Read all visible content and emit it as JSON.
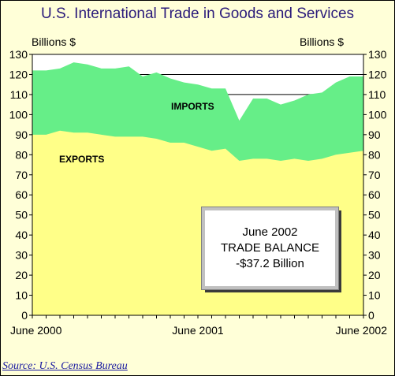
{
  "chart_data": {
    "type": "area",
    "title": "U.S. International Trade in Goods and Services",
    "ylabel_left": "Billions $",
    "ylabel_right": "Billions $",
    "ylim": [
      0,
      130
    ],
    "yticks": [
      0,
      10,
      20,
      30,
      40,
      50,
      60,
      70,
      80,
      90,
      100,
      110,
      120,
      130
    ],
    "x": [
      "2000-06",
      "2000-07",
      "2000-08",
      "2000-09",
      "2000-10",
      "2000-11",
      "2000-12",
      "2001-01",
      "2001-02",
      "2001-03",
      "2001-04",
      "2001-05",
      "2001-06",
      "2001-07",
      "2001-08",
      "2001-09",
      "2001-10",
      "2001-11",
      "2001-12",
      "2002-01",
      "2002-02",
      "2002-03",
      "2002-04",
      "2002-05",
      "2002-06"
    ],
    "x_tick_labels": [
      {
        "x": "2000-06",
        "label": "June 2000"
      },
      {
        "x": "2001-06",
        "label": "June 2001"
      },
      {
        "x": "2002-06",
        "label": "June 2002"
      }
    ],
    "gridlines": [
      120,
      110
    ],
    "series": [
      {
        "name": "IMPORTS",
        "color": "#66ee88",
        "values": [
          122,
          122,
          123,
          126,
          125,
          123,
          123,
          124,
          119,
          121,
          118,
          116,
          115,
          113,
          113,
          97,
          108,
          108,
          105,
          107,
          110,
          111,
          116,
          119,
          119
        ]
      },
      {
        "name": "EXPORTS",
        "color": "#ffff88",
        "values": [
          90,
          90,
          92,
          91,
          91,
          90,
          89,
          89,
          89,
          88,
          86,
          86,
          84,
          82,
          83,
          77,
          78,
          78,
          77,
          78,
          77,
          78,
          80,
          81,
          82
        ]
      }
    ],
    "annotation": {
      "lines": [
        "June 2002",
        "TRADE BALANCE",
        "-$37.2 Billion"
      ]
    }
  },
  "source": "Source: U.S. Census Bureau"
}
